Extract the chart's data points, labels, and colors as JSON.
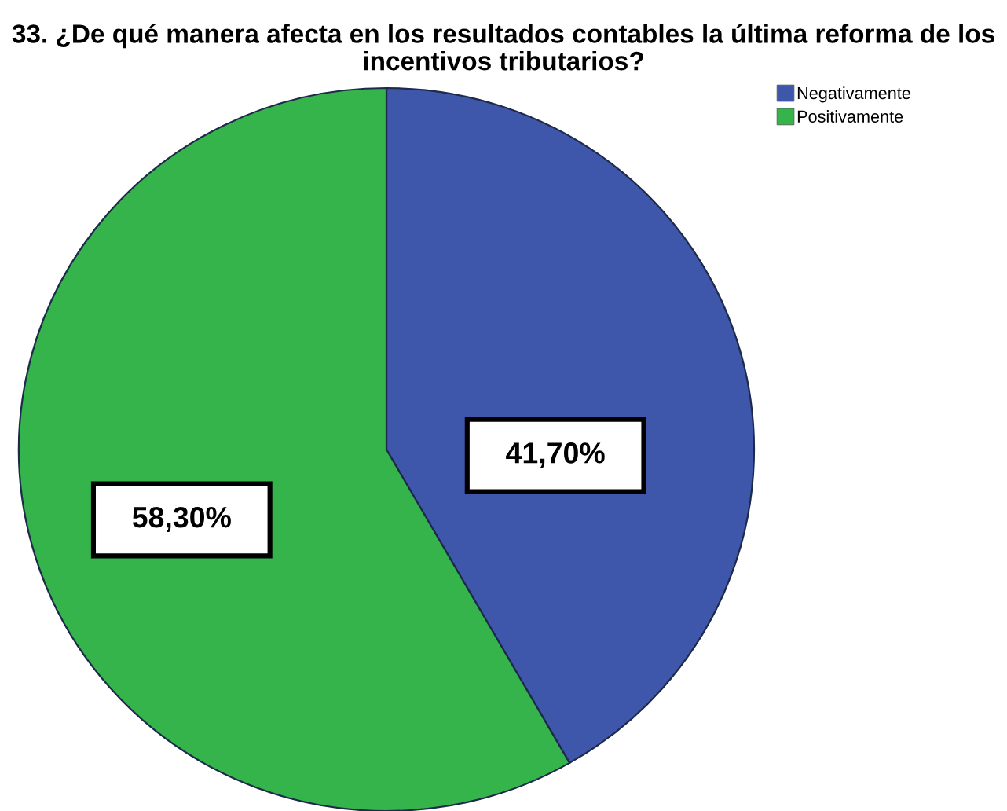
{
  "chart_data": {
    "type": "pie",
    "title": "33. ¿De qué manera afecta en los resultados contables la última reforma de los incentivos tributarios?",
    "categories": [
      "Negativamente",
      "Positivamente"
    ],
    "values": [
      41.7,
      58.3
    ],
    "colors": [
      "#3f57ab",
      "#34b44a"
    ],
    "value_labels": [
      "41,70%",
      "58,30%"
    ],
    "legend": "top right"
  }
}
